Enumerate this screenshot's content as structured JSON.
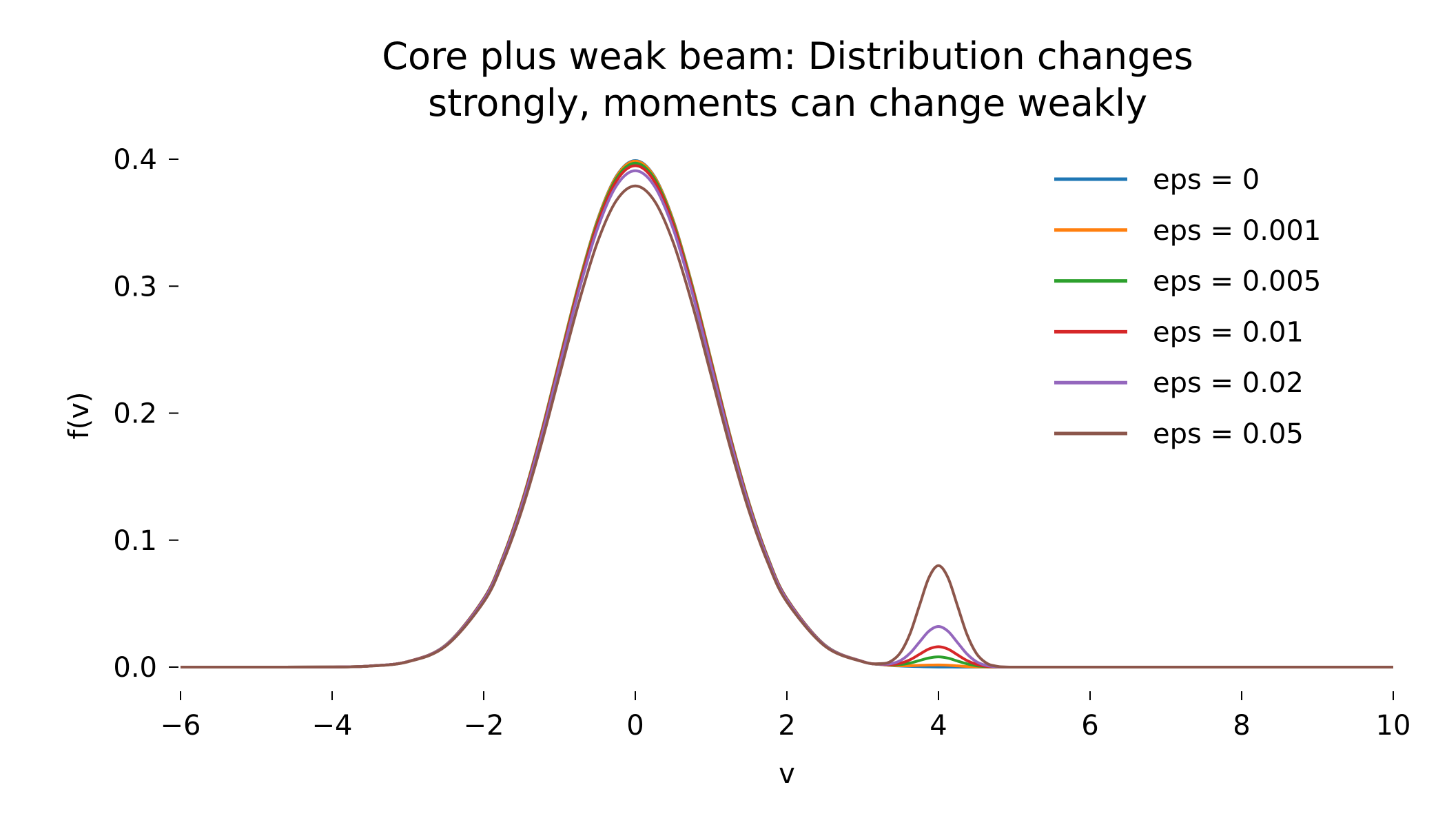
{
  "chart_data": {
    "type": "line",
    "title": [
      "Core plus weak beam: Distribution changes",
      "strongly, moments can change weakly"
    ],
    "xlabel": "v",
    "ylabel": "f(v)",
    "xlim": [
      -6,
      10
    ],
    "ylim": [
      -0.02,
      0.42
    ],
    "xticks": [
      -6,
      -4,
      -2,
      0,
      2,
      4,
      6,
      8,
      10
    ],
    "xtick_labels": [
      "−6",
      "−4",
      "−2",
      "0",
      "2",
      "4",
      "6",
      "8",
      "10"
    ],
    "yticks": [
      0.0,
      0.1,
      0.2,
      0.3,
      0.4
    ],
    "ytick_labels": [
      "0.0",
      "0.1",
      "0.2",
      "0.3",
      "0.4"
    ],
    "grid": false,
    "spines": false,
    "legend_position": "top-right",
    "x": [
      -6,
      -5,
      -4,
      -3.5,
      -3,
      -2.5,
      -2,
      -1.75,
      -1.5,
      -1.25,
      -1,
      -0.75,
      -0.5,
      -0.25,
      0,
      0.25,
      0.5,
      0.75,
      1,
      1.25,
      1.5,
      1.75,
      2,
      2.5,
      3,
      3.25,
      3.375,
      3.5,
      3.625,
      3.75,
      3.875,
      4,
      4.125,
      4.25,
      4.375,
      4.5,
      4.625,
      4.75,
      5,
      6,
      8,
      10
    ],
    "series": [
      {
        "name": "eps = 0",
        "color": "#1f77b4",
        "values": [
          0,
          0,
          0.0001,
          0.0009,
          0.0044,
          0.0175,
          0.054,
          0.0863,
          0.1295,
          0.1826,
          0.242,
          0.3011,
          0.3521,
          0.3867,
          0.3989,
          0.3867,
          0.3521,
          0.3011,
          0.242,
          0.1826,
          0.1295,
          0.0863,
          0.054,
          0.0175,
          0.0044,
          0.002,
          0.0013,
          0.0009,
          0.0006,
          0.0004,
          0.0002,
          0.0001,
          0.0001,
          0,
          0,
          0,
          0,
          0,
          0,
          0,
          0,
          0
        ]
      },
      {
        "name": "eps = 0.001",
        "color": "#ff7f0e",
        "values": [
          0,
          0,
          0.0001,
          0.0009,
          0.0044,
          0.0175,
          0.0539,
          0.0862,
          0.1294,
          0.1824,
          0.2418,
          0.3008,
          0.3517,
          0.3863,
          0.3985,
          0.3863,
          0.3517,
          0.3008,
          0.2418,
          0.1824,
          0.1294,
          0.0862,
          0.0539,
          0.0175,
          0.0044,
          0.002,
          0.0014,
          0.0011,
          0.0011,
          0.0014,
          0.0016,
          0.0017,
          0.0015,
          0.001,
          0.0005,
          0.0002,
          0.0001,
          0,
          0,
          0,
          0,
          0
        ]
      },
      {
        "name": "eps = 0.005",
        "color": "#2ca02c",
        "values": [
          0,
          0,
          0.0001,
          0.0009,
          0.0044,
          0.0174,
          0.0537,
          0.0859,
          0.1289,
          0.1817,
          0.2408,
          0.2996,
          0.3503,
          0.3848,
          0.3969,
          0.3848,
          0.3503,
          0.2996,
          0.2408,
          0.1817,
          0.1289,
          0.0859,
          0.0537,
          0.0174,
          0.0044,
          0.0021,
          0.0017,
          0.002,
          0.0032,
          0.0052,
          0.0072,
          0.0081,
          0.0071,
          0.0048,
          0.0026,
          0.0011,
          0.0004,
          0.0001,
          0,
          0,
          0,
          0
        ]
      },
      {
        "name": "eps = 0.01",
        "color": "#d62728",
        "values": [
          0,
          0,
          0.0001,
          0.0009,
          0.0044,
          0.0173,
          0.0535,
          0.0854,
          0.1282,
          0.1808,
          0.2396,
          0.2981,
          0.3486,
          0.3828,
          0.3949,
          0.3828,
          0.3486,
          0.2981,
          0.2396,
          0.1808,
          0.1282,
          0.0854,
          0.0535,
          0.0173,
          0.0044,
          0.0022,
          0.002,
          0.0031,
          0.0058,
          0.0101,
          0.0143,
          0.0161,
          0.0142,
          0.0097,
          0.0052,
          0.0022,
          0.0007,
          0.0002,
          0,
          0,
          0,
          0
        ]
      },
      {
        "name": "eps = 0.02",
        "color": "#9467bd",
        "values": [
          0,
          0,
          0.0001,
          0.0009,
          0.0043,
          0.0172,
          0.0529,
          0.0846,
          0.1269,
          0.1789,
          0.2372,
          0.2951,
          0.3451,
          0.379,
          0.3909,
          0.379,
          0.3451,
          0.2951,
          0.2372,
          0.1789,
          0.1269,
          0.0846,
          0.0529,
          0.0172,
          0.0043,
          0.0024,
          0.0027,
          0.0052,
          0.011,
          0.0198,
          0.0284,
          0.032,
          0.0283,
          0.0194,
          0.0104,
          0.0043,
          0.0014,
          0.0004,
          0,
          0,
          0,
          0
        ]
      },
      {
        "name": "eps = 0.05",
        "color": "#8c564b",
        "values": [
          0,
          0,
          0.0001,
          0.0008,
          0.0042,
          0.0166,
          0.0513,
          0.082,
          0.123,
          0.1735,
          0.2299,
          0.286,
          0.3345,
          0.3674,
          0.379,
          0.3674,
          0.3345,
          0.286,
          0.2299,
          0.1735,
          0.123,
          0.082,
          0.0513,
          0.0166,
          0.0042,
          0.0028,
          0.0047,
          0.0116,
          0.0264,
          0.0487,
          0.0706,
          0.0799,
          0.0705,
          0.0484,
          0.0259,
          0.0108,
          0.0035,
          0.0009,
          0,
          0,
          0,
          0
        ]
      }
    ]
  }
}
